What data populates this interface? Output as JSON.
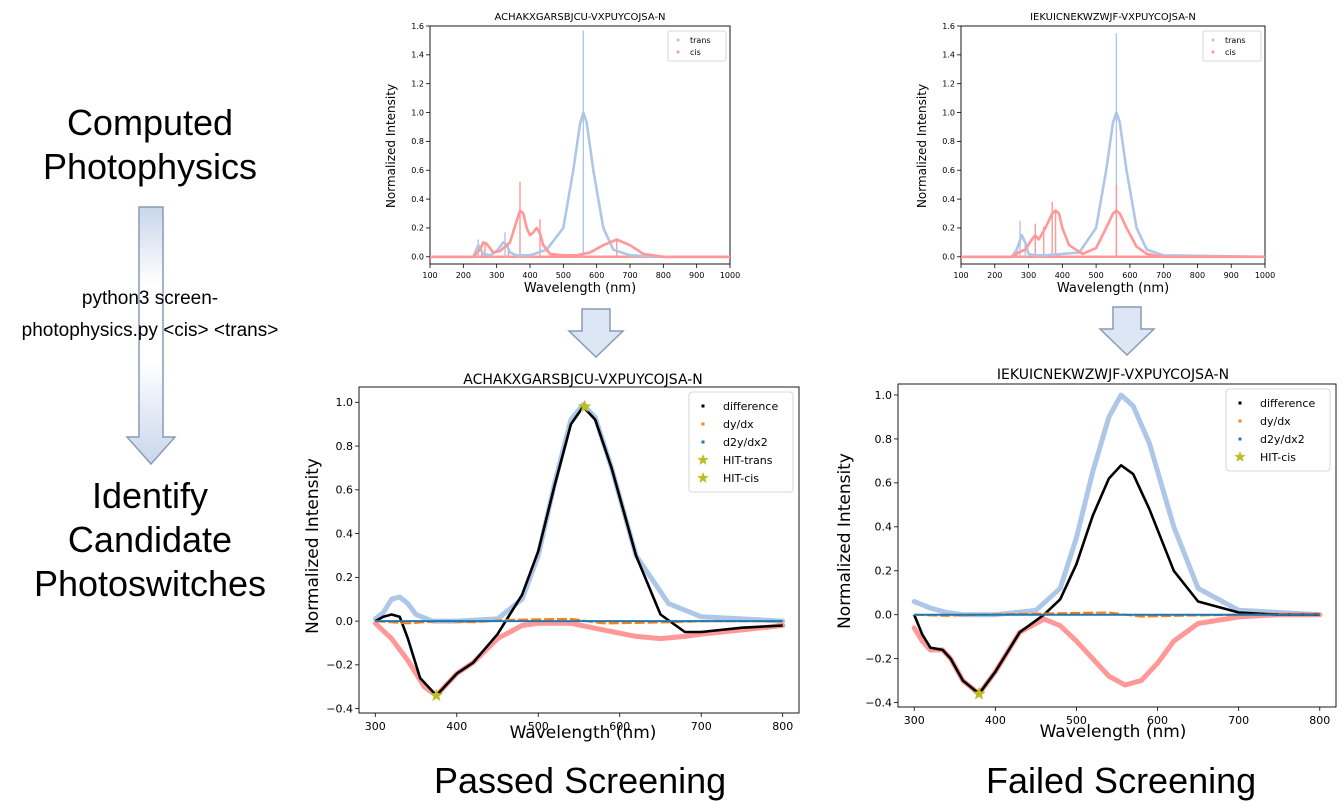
{
  "workflow": {
    "step_top": [
      "Computed",
      "Photophysics"
    ],
    "command": [
      "python3 screen-",
      "photophysics.py <cis> <trans>"
    ],
    "step_bottom": [
      "Identify",
      "Candidate",
      "Photoswitches"
    ]
  },
  "footer": {
    "passed": "Passed Screening",
    "failed": "Failed Screening"
  },
  "chart_data": [
    {
      "id": "spec-pass",
      "type": "line",
      "title": "ACHAKXGARSBJCU-VXPUYCOJSA-N",
      "xlabel": "Wavelength (nm)",
      "ylabel": "Normalized Intensity",
      "xlim": [
        100,
        1000
      ],
      "ylim": [
        -0.05,
        1.6
      ],
      "xticks": [
        "100",
        "200",
        "300",
        "400",
        "500",
        "600",
        "700",
        "800",
        "900",
        "1000"
      ],
      "yticks": [
        "0.0",
        "0.2",
        "0.4",
        "0.6",
        "0.8",
        "1.0",
        "1.2",
        "1.4",
        "1.6"
      ],
      "legend_position": "top-right",
      "colors": {
        "trans": "#aec7e8",
        "cis": "#ff9896"
      },
      "series": [
        {
          "name": "trans",
          "x": [
            100,
            230,
            245,
            260,
            280,
            300,
            320,
            330,
            340,
            360,
            400,
            450,
            500,
            530,
            550,
            560,
            570,
            590,
            620,
            650,
            700,
            800,
            1000
          ],
          "y": [
            0,
            0,
            0.08,
            0.02,
            0.01,
            0.04,
            0.1,
            0.08,
            0.03,
            0.01,
            0.01,
            0.05,
            0.2,
            0.6,
            0.92,
            1.0,
            0.93,
            0.6,
            0.2,
            0.05,
            0.01,
            0,
            0
          ]
        },
        {
          "name": "cis",
          "x": [
            100,
            230,
            250,
            260,
            270,
            290,
            310,
            340,
            360,
            370,
            380,
            390,
            400,
            410,
            420,
            430,
            440,
            460,
            500,
            540,
            580,
            620,
            660,
            700,
            740,
            800,
            1000
          ],
          "y": [
            0,
            0,
            0.05,
            0.1,
            0.09,
            0.03,
            0.04,
            0.1,
            0.25,
            0.32,
            0.3,
            0.2,
            0.15,
            0.17,
            0.2,
            0.16,
            0.08,
            0.02,
            0.01,
            0.01,
            0.03,
            0.08,
            0.12,
            0.08,
            0.02,
            0,
            0
          ]
        }
      ],
      "sticks": {
        "trans": [
          [
            245,
            0.12
          ],
          [
            325,
            0.17
          ],
          [
            560,
            1.57
          ]
        ],
        "cis": [
          [
            255,
            0.05
          ],
          [
            265,
            0.1
          ],
          [
            335,
            0.08
          ],
          [
            370,
            0.52
          ],
          [
            430,
            0.26
          ],
          [
            660,
            0.12
          ]
        ]
      }
    },
    {
      "id": "spec-fail",
      "type": "line",
      "title": "IEKUICNEKWZWJF-VXPUYCOJSA-N",
      "xlabel": "Wavelength (nm)",
      "ylabel": "Normalized Intensity",
      "xlim": [
        100,
        1000
      ],
      "ylim": [
        -0.05,
        1.6
      ],
      "xticks": [
        "100",
        "200",
        "300",
        "400",
        "500",
        "600",
        "700",
        "800",
        "900",
        "1000"
      ],
      "yticks": [
        "0.0",
        "0.2",
        "0.4",
        "0.6",
        "0.8",
        "1.0",
        "1.2",
        "1.4",
        "1.6"
      ],
      "legend_position": "top-right",
      "colors": {
        "trans": "#aec7e8",
        "cis": "#ff9896"
      },
      "series": [
        {
          "name": "trans",
          "x": [
            100,
            250,
            265,
            280,
            290,
            300,
            320,
            350,
            450,
            500,
            530,
            550,
            560,
            570,
            590,
            620,
            650,
            700,
            1000
          ],
          "y": [
            0,
            0,
            0.05,
            0.15,
            0.1,
            0.02,
            0.01,
            0.01,
            0.03,
            0.2,
            0.6,
            0.93,
            1.0,
            0.93,
            0.6,
            0.2,
            0.05,
            0.01,
            0
          ]
        },
        {
          "name": "cis",
          "x": [
            100,
            250,
            270,
            290,
            310,
            320,
            330,
            350,
            370,
            380,
            390,
            400,
            420,
            460,
            500,
            530,
            550,
            560,
            570,
            590,
            620,
            650,
            700,
            1000
          ],
          "y": [
            0,
            0,
            0.03,
            0.05,
            0.12,
            0.15,
            0.12,
            0.2,
            0.3,
            0.32,
            0.3,
            0.2,
            0.08,
            0.02,
            0.06,
            0.2,
            0.3,
            0.32,
            0.3,
            0.2,
            0.07,
            0.02,
            0,
            0
          ]
        }
      ],
      "sticks": {
        "trans": [
          [
            275,
            0.25
          ],
          [
            290,
            0.1
          ],
          [
            560,
            1.55
          ]
        ],
        "cis": [
          [
            265,
            0.05
          ],
          [
            320,
            0.23
          ],
          [
            345,
            0.21
          ],
          [
            370,
            0.38
          ],
          [
            380,
            0.33
          ],
          [
            560,
            0.5
          ]
        ]
      }
    },
    {
      "id": "diff-pass",
      "type": "scatter",
      "title": "ACHAKXGARSBJCU-VXPUYCOJSA-N",
      "xlabel": "Wavelength (nm)",
      "ylabel": "Normalized Intensity",
      "xlim": [
        280,
        820
      ],
      "ylim": [
        -0.42,
        1.07
      ],
      "xticks": [
        "300",
        "400",
        "500",
        "600",
        "700",
        "800"
      ],
      "yticks": [
        "−0.4",
        "−0.2",
        "0.0",
        "0.2",
        "0.4",
        "0.6",
        "0.8",
        "1.0"
      ],
      "legend_position": "top-right",
      "legend": [
        "difference",
        "dy/dx",
        "d2y/dx2",
        "HIT-trans",
        "HIT-cis"
      ],
      "colors": {
        "trans": "#aec7e8",
        "cis": "#ff9896",
        "difference": "#000000",
        "dydx": "#ff7f0e",
        "d2ydx2": "#1f77b4",
        "hit": "#bcbd22"
      },
      "background_series": [
        {
          "name": "trans",
          "x": [
            300,
            310,
            320,
            330,
            340,
            350,
            370,
            400,
            450,
            480,
            500,
            520,
            540,
            555,
            570,
            590,
            620,
            660,
            700,
            750,
            800
          ],
          "y": [
            0.01,
            0.04,
            0.1,
            0.11,
            0.08,
            0.03,
            0,
            0,
            0.01,
            0.1,
            0.3,
            0.63,
            0.92,
            0.99,
            0.93,
            0.7,
            0.3,
            0.08,
            0.02,
            0.01,
            0
          ]
        },
        {
          "name": "cis",
          "x": [
            300,
            320,
            340,
            360,
            375,
            390,
            400,
            420,
            450,
            480,
            500,
            540,
            580,
            620,
            650,
            680,
            700,
            750,
            800
          ],
          "y": [
            -0.01,
            -0.08,
            -0.18,
            -0.3,
            -0.34,
            -0.28,
            -0.24,
            -0.19,
            -0.08,
            -0.02,
            -0.01,
            -0.01,
            -0.04,
            -0.07,
            -0.08,
            -0.07,
            -0.06,
            -0.04,
            -0.02
          ]
        }
      ],
      "series": [
        {
          "name": "difference",
          "x": [
            300,
            310,
            320,
            330,
            340,
            355,
            375,
            390,
            400,
            420,
            450,
            480,
            500,
            520,
            540,
            555,
            570,
            590,
            620,
            650,
            680,
            700,
            750,
            800
          ],
          "y": [
            0,
            0.02,
            0.03,
            0.02,
            -0.08,
            -0.26,
            -0.34,
            -0.28,
            -0.24,
            -0.19,
            -0.06,
            0.12,
            0.32,
            0.62,
            0.9,
            0.98,
            0.92,
            0.7,
            0.3,
            0.03,
            -0.05,
            -0.05,
            -0.03,
            -0.02
          ]
        },
        {
          "name": "dy/dx",
          "x": [
            300,
            340,
            380,
            420,
            460,
            500,
            540,
            560,
            580,
            620,
            660,
            700,
            800
          ],
          "y": [
            0,
            -0.01,
            0,
            -0.005,
            0.005,
            0.008,
            0.01,
            0,
            -0.01,
            -0.008,
            -0.005,
            0,
            0
          ]
        },
        {
          "name": "d2y/dx2",
          "x": [
            300,
            800
          ],
          "y": [
            0,
            0
          ]
        }
      ],
      "hits": [
        {
          "name": "HIT-trans",
          "x": 557,
          "y": 0.98
        },
        {
          "name": "HIT-cis",
          "x": 375,
          "y": -0.34
        }
      ]
    },
    {
      "id": "diff-fail",
      "type": "scatter",
      "title": "IEKUICNEKWZWJF-VXPUYCOJSA-N",
      "xlabel": "Wavelength (nm)",
      "ylabel": "Normalized Intensity",
      "xlim": [
        280,
        820
      ],
      "ylim": [
        -0.42,
        1.05
      ],
      "xticks": [
        "300",
        "400",
        "500",
        "600",
        "700",
        "800"
      ],
      "yticks": [
        "−0.4",
        "−0.2",
        "0.0",
        "0.2",
        "0.4",
        "0.6",
        "0.8",
        "1.0"
      ],
      "legend_position": "top-right",
      "legend": [
        "difference",
        "dy/dx",
        "d2y/dx2",
        "HIT-cis"
      ],
      "colors": {
        "trans": "#aec7e8",
        "cis": "#ff9896",
        "difference": "#000000",
        "dydx": "#ff7f0e",
        "d2ydx2": "#1f77b4",
        "hit": "#bcbd22"
      },
      "background_series": [
        {
          "name": "trans",
          "x": [
            300,
            320,
            340,
            360,
            400,
            450,
            480,
            500,
            520,
            540,
            555,
            570,
            590,
            620,
            650,
            700,
            750,
            800
          ],
          "y": [
            0.06,
            0.03,
            0.01,
            0,
            0,
            0.02,
            0.12,
            0.35,
            0.65,
            0.9,
            1.0,
            0.95,
            0.78,
            0.4,
            0.12,
            0.02,
            0.01,
            0
          ]
        },
        {
          "name": "cis",
          "x": [
            300,
            310,
            320,
            335,
            345,
            360,
            380,
            400,
            430,
            460,
            480,
            500,
            520,
            540,
            560,
            580,
            600,
            620,
            650,
            700,
            750,
            800
          ],
          "y": [
            -0.06,
            -0.12,
            -0.16,
            -0.16,
            -0.2,
            -0.3,
            -0.36,
            -0.26,
            -0.08,
            -0.02,
            -0.05,
            -0.12,
            -0.2,
            -0.28,
            -0.32,
            -0.3,
            -0.22,
            -0.12,
            -0.04,
            -0.01,
            0,
            0
          ]
        }
      ],
      "series": [
        {
          "name": "difference",
          "x": [
            300,
            310,
            320,
            335,
            345,
            360,
            380,
            400,
            430,
            460,
            480,
            500,
            520,
            540,
            555,
            570,
            590,
            620,
            650,
            700,
            750,
            800
          ],
          "y": [
            0,
            -0.09,
            -0.15,
            -0.16,
            -0.2,
            -0.3,
            -0.36,
            -0.26,
            -0.08,
            0,
            0.07,
            0.23,
            0.45,
            0.62,
            0.68,
            0.64,
            0.48,
            0.2,
            0.06,
            0.01,
            0,
            0
          ]
        },
        {
          "name": "dy/dx",
          "x": [
            300,
            340,
            380,
            420,
            460,
            500,
            540,
            560,
            580,
            620,
            700,
            800
          ],
          "y": [
            0,
            -0.005,
            0,
            0.003,
            0.005,
            0.008,
            0.01,
            0,
            -0.008,
            -0.005,
            0,
            0
          ]
        },
        {
          "name": "d2y/dx2",
          "x": [
            300,
            800
          ],
          "y": [
            0,
            0
          ]
        }
      ],
      "hits": [
        {
          "name": "HIT-cis",
          "x": 380,
          "y": -0.36
        }
      ]
    }
  ]
}
